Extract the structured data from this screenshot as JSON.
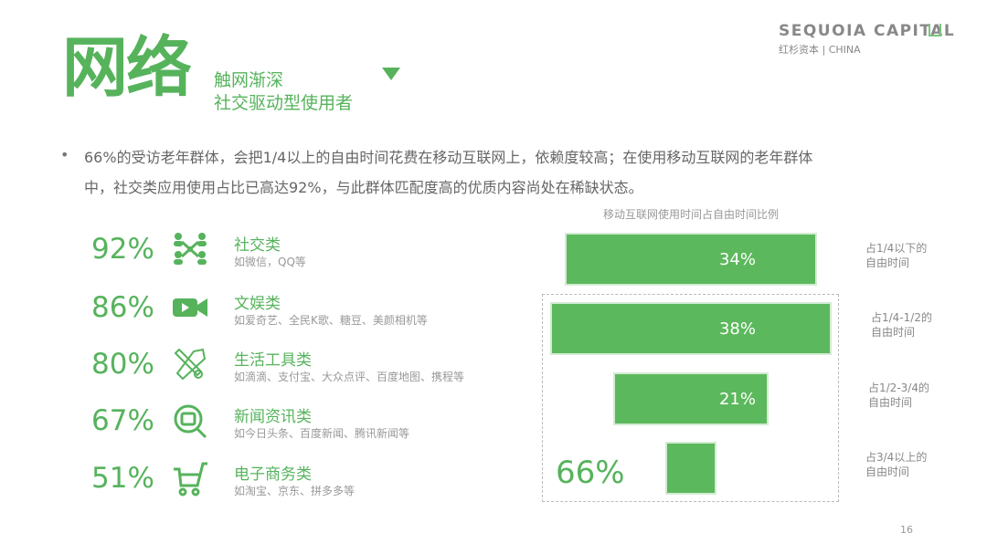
{
  "header": {
    "title": "网络",
    "subtitle_line1": "触网渐深",
    "subtitle_line2": "社交驱动型使用者",
    "icon": "triangle-down-icon"
  },
  "logo": {
    "name": "SEQUOIA CAPITAL",
    "sub": "红杉资本 | CHINA"
  },
  "summary": {
    "line1": "66%的受访老年群体，会把1/4以上的自由时间花费在移动互联网上，依赖度较高；在使用移动互联网的老年群体",
    "line2": "中，社交类应用使用占比已高达92%，与此群体匹配度高的优质内容尚处在稀缺状态。"
  },
  "categories": [
    {
      "pct": "92%",
      "name": "社交类",
      "examples": "如微信，QQ等",
      "icon": "people-network-icon"
    },
    {
      "pct": "86%",
      "name": "文娱类",
      "examples": "如爱奇艺、全民K歌、糖豆、美颜相机等",
      "icon": "video-camera-icon"
    },
    {
      "pct": "80%",
      "name": "生活工具类",
      "examples": "如滴滴、支付宝、大众点评、百度地图、携程等",
      "icon": "tools-icon"
    },
    {
      "pct": "67%",
      "name": "新闻资讯类",
      "examples": "如今日头条、百度新闻、腾讯新闻等",
      "icon": "news-search-icon"
    },
    {
      "pct": "51%",
      "name": "电子商务类",
      "examples": "如淘宝、京东、拼多多等",
      "icon": "shopping-cart-icon"
    }
  ],
  "chart_data": {
    "type": "bar",
    "title": "移动互联网使用时间占自由时间比例",
    "categories": [
      "占1/4以下的自由时间",
      "占1/4-1/2的自由时间",
      "占1/2-3/4的自由时间",
      "占3/4以上的自由时间"
    ],
    "category_lines": [
      [
        "占1/4以下的",
        "自由时间"
      ],
      [
        "占1/4-1/2的",
        "自由时间"
      ],
      [
        "占1/2-3/4的",
        "自由时间"
      ],
      [
        "占3/4以上的",
        "自由时间"
      ]
    ],
    "values": [
      34,
      38,
      21,
      7
    ],
    "labels": [
      "34%",
      "38%",
      "21%",
      ""
    ],
    "group_annotation": "66%",
    "color": "#5cb85c"
  },
  "page_number": "16"
}
